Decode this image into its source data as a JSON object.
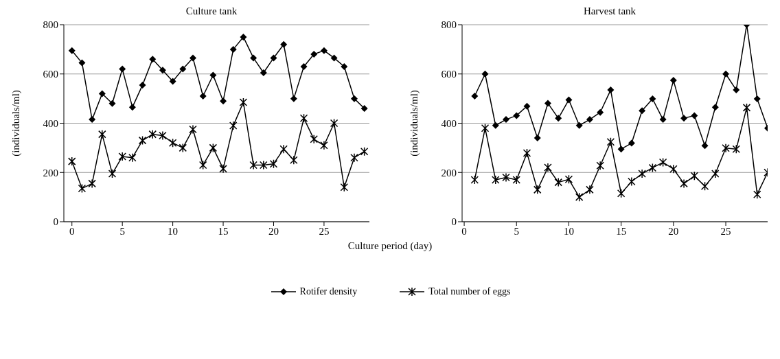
{
  "chart_data": [
    {
      "type": "line",
      "title": "Culture tank",
      "xlabel": "Culture period (day)",
      "ylabel": "(individuals/ml)",
      "x": [
        0,
        1,
        2,
        3,
        4,
        5,
        6,
        7,
        8,
        9,
        10,
        11,
        12,
        13,
        14,
        15,
        16,
        17,
        18,
        19,
        20,
        21,
        22,
        23,
        24,
        25,
        26,
        27,
        28,
        29
      ],
      "xlim": [
        -0.8,
        29.5
      ],
      "xticks": [
        0,
        5,
        10,
        15,
        20,
        25
      ],
      "ylim": [
        0,
        800
      ],
      "yticks": [
        0,
        200,
        400,
        600,
        800
      ],
      "grid": "y",
      "legend": "bottom",
      "series": [
        {
          "name": "Rotifer density",
          "color": "#000000",
          "marker": "diamond",
          "values": [
            695,
            645,
            415,
            520,
            480,
            620,
            465,
            555,
            660,
            615,
            570,
            620,
            665,
            510,
            595,
            490,
            700,
            750,
            665,
            605,
            665,
            720,
            500,
            630,
            680,
            695,
            665,
            630,
            500,
            460
          ]
        },
        {
          "name": "Total number of eggs",
          "color": "#000000",
          "marker": "cross",
          "values": [
            245,
            135,
            155,
            355,
            195,
            265,
            260,
            330,
            355,
            350,
            320,
            300,
            375,
            230,
            300,
            215,
            390,
            485,
            230,
            230,
            235,
            295,
            250,
            420,
            335,
            310,
            400,
            140,
            260,
            285
          ]
        }
      ]
    },
    {
      "type": "line",
      "title": "Harvest tank",
      "ylabel": "(individuals/ml)",
      "x": [
        1,
        2,
        3,
        4,
        5,
        6,
        7,
        8,
        9,
        10,
        11,
        12,
        13,
        14,
        15,
        16,
        17,
        18,
        19,
        20,
        21,
        22,
        23,
        24,
        25,
        26,
        27,
        28,
        29
      ],
      "xlim": [
        -0.2,
        29
      ],
      "xticks": [
        0,
        5,
        10,
        15,
        20,
        25
      ],
      "ylim": [
        0,
        800
      ],
      "yticks": [
        0,
        200,
        400,
        600,
        800
      ],
      "grid": "y",
      "series": [
        {
          "color": "#000000",
          "marker": "diamond",
          "values": [
            510,
            600,
            391,
            415,
            431,
            469,
            340,
            481,
            420,
            495,
            391,
            415,
            444,
            535,
            295,
            319,
            451,
            499,
            415,
            574,
            420,
            431,
            309,
            465,
            600,
            535,
            800,
            499,
            380
          ]
        },
        {
          "color": "#000000",
          "marker": "cross",
          "values": [
            170,
            380,
            170,
            180,
            170,
            279,
            130,
            220,
            160,
            172,
            100,
            130,
            228,
            324,
            115,
            163,
            195,
            219,
            241,
            214,
            155,
            186,
            144,
            195,
            299,
            295,
            463,
            111,
            200
          ]
        }
      ]
    }
  ]
}
